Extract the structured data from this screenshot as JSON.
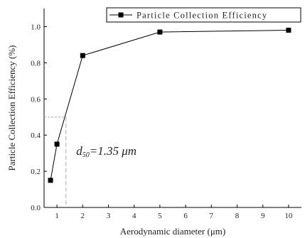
{
  "chart_data": {
    "type": "line",
    "xlabel": "Aerodynamic diameter (μm)",
    "ylabel": "Particle Collection Efficiency (%)",
    "xlim": [
      0.5,
      10.5
    ],
    "ylim": [
      0.0,
      1.1
    ],
    "x_ticks": [
      1,
      2,
      3,
      4,
      5,
      6,
      7,
      8,
      9,
      10
    ],
    "y_ticks": [
      0.0,
      0.2,
      0.4,
      0.6,
      0.8,
      1.0
    ],
    "y_tick_labels": [
      "0.0",
      "0.2",
      "0.4",
      "0.6",
      "0.8",
      "1.0"
    ],
    "grid": false,
    "legend_position": "top-right",
    "series": [
      {
        "name": "Particle Collection Efficiency",
        "color": "#000000",
        "marker": "square",
        "x": [
          0.75,
          1.0,
          2.0,
          5.0,
          10.0
        ],
        "y": [
          0.15,
          0.35,
          0.84,
          0.97,
          0.98
        ]
      }
    ],
    "annotation": {
      "main": "d",
      "sub": "50",
      "rest": "=1.35 μm",
      "x": 1.35,
      "y": 0.5,
      "label_x": 1.75,
      "label_y": 0.29,
      "guide_color": "#aaaaaa"
    }
  }
}
